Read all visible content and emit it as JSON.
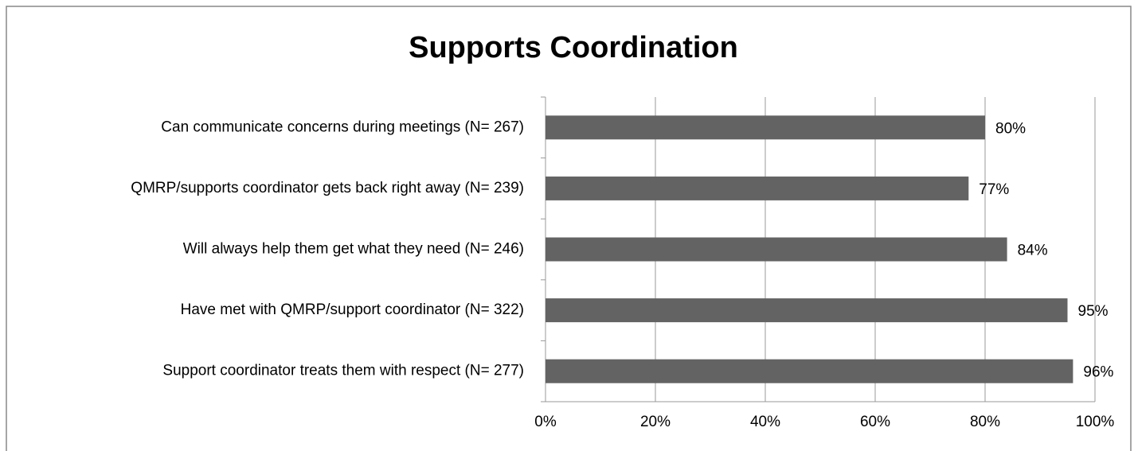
{
  "chart_data": {
    "type": "bar",
    "orientation": "horizontal",
    "title": "Supports Coordination",
    "categories": [
      "Can communicate concerns during meetings (N= 267)",
      "QMRP/supports coordinator gets back right away (N= 239)",
      "Will always help them get what they need (N= 246)",
      "Have met with QMRP/support coordinator (N= 322)",
      "Support coordinator treats them with respect (N= 277)"
    ],
    "values": [
      80,
      77,
      84,
      95,
      96
    ],
    "value_labels": [
      "80%",
      "77%",
      "84%",
      "95%",
      "96%"
    ],
    "color": "#636363",
    "xlim": [
      0,
      100
    ],
    "xticks": [
      {
        "value": 0,
        "label": "0%"
      },
      {
        "value": 20,
        "label": "20%"
      },
      {
        "value": 40,
        "label": "40%"
      },
      {
        "value": 60,
        "label": "60%"
      },
      {
        "value": 80,
        "label": "80%"
      },
      {
        "value": 100,
        "label": "100%"
      }
    ],
    "grid": true
  }
}
